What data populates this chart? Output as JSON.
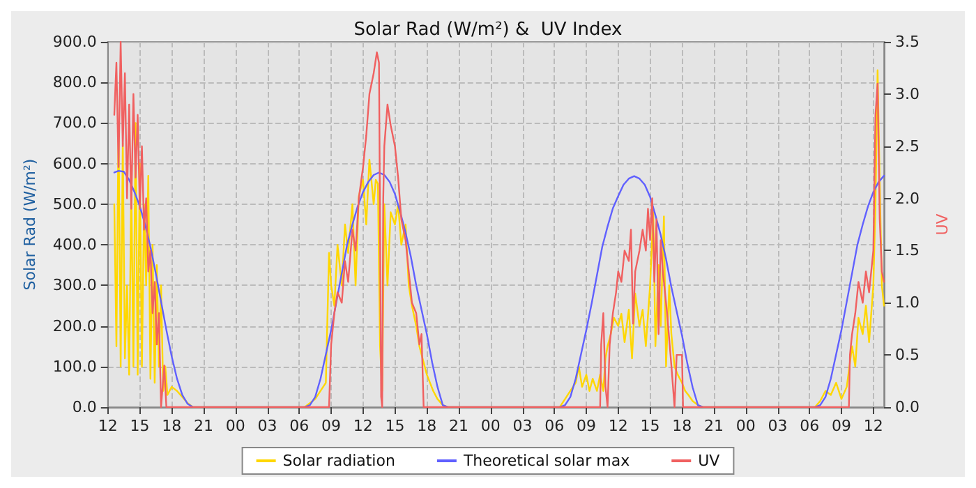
{
  "chart_data": {
    "type": "line",
    "title": "Solar Rad (W/m²) &  UV Index",
    "ylabel": "Solar Rad (W/m²)",
    "y2label": "UV",
    "xlim": [
      12,
      85
    ],
    "xticks": [
      {
        "value": 12,
        "label": "12"
      },
      {
        "value": 15,
        "label": "15"
      },
      {
        "value": 18,
        "label": "18"
      },
      {
        "value": 21,
        "label": "21"
      },
      {
        "value": 24,
        "label": "00"
      },
      {
        "value": 27,
        "label": "03"
      },
      {
        "value": 30,
        "label": "06"
      },
      {
        "value": 33,
        "label": "09"
      },
      {
        "value": 36,
        "label": "12"
      },
      {
        "value": 39,
        "label": "15"
      },
      {
        "value": 42,
        "label": "18"
      },
      {
        "value": 45,
        "label": "21"
      },
      {
        "value": 48,
        "label": "00"
      },
      {
        "value": 51,
        "label": "03"
      },
      {
        "value": 54,
        "label": "06"
      },
      {
        "value": 57,
        "label": "09"
      },
      {
        "value": 60,
        "label": "12"
      },
      {
        "value": 63,
        "label": "15"
      },
      {
        "value": 66,
        "label": "18"
      },
      {
        "value": 69,
        "label": "21"
      },
      {
        "value": 72,
        "label": "00"
      },
      {
        "value": 75,
        "label": "03"
      },
      {
        "value": 78,
        "label": "06"
      },
      {
        "value": 81,
        "label": "09"
      },
      {
        "value": 84,
        "label": "12"
      }
    ],
    "ylim": [
      0,
      900
    ],
    "yticks": [
      {
        "value": 0,
        "label": "0.0"
      },
      {
        "value": 100,
        "label": "100.0"
      },
      {
        "value": 200,
        "label": "200.0"
      },
      {
        "value": 300,
        "label": "300.0"
      },
      {
        "value": 400,
        "label": "400.0"
      },
      {
        "value": 500,
        "label": "500.0"
      },
      {
        "value": 600,
        "label": "600.0"
      },
      {
        "value": 700,
        "label": "700.0"
      },
      {
        "value": 800,
        "label": "800.0"
      },
      {
        "value": 900,
        "label": "900.0"
      }
    ],
    "y2lim": [
      0,
      3.5
    ],
    "y2ticks": [
      {
        "value": 0,
        "label": "0.0"
      },
      0.5,
      {
        "value": 1,
        "label": "1.0"
      },
      1.5,
      {
        "value": 2,
        "label": "2.0"
      },
      2.5,
      {
        "value": 3,
        "label": "3.0"
      },
      3.5
    ],
    "grid": true,
    "legend": "bottom",
    "marker": "none",
    "line_style": "solid",
    "series": [
      {
        "name": "Solar radiation",
        "color": "#ffd700",
        "x": [
          12.6,
          12.8,
          13,
          13.2,
          13.4,
          13.6,
          13.8,
          14,
          14.2,
          14.4,
          14.6,
          14.8,
          15,
          15.2,
          15.4,
          15.6,
          15.8,
          16,
          16.2,
          16.4,
          16.6,
          16.8,
          17,
          17.2,
          17.4,
          17.6,
          18,
          18.5,
          19,
          19.5,
          20,
          30.5,
          31.5,
          32,
          32.5,
          32.8,
          33,
          33.3,
          33.6,
          34,
          34.3,
          34.6,
          35,
          35.3,
          35.6,
          36,
          36.3,
          36.6,
          37,
          37.2,
          37.4,
          37.6,
          37.8,
          38,
          38.3,
          38.6,
          39,
          39.3,
          39.6,
          40,
          40.3,
          40.6,
          41,
          41.3,
          41.6,
          42,
          42.3,
          42.6,
          43,
          43.5,
          44,
          54.5,
          55,
          55.5,
          56,
          56.3,
          56.6,
          57,
          57.3,
          57.6,
          58,
          58.3,
          58.6,
          58.8,
          59,
          59.3,
          59.6,
          60,
          60.3,
          60.6,
          61,
          61.3,
          61.6,
          62,
          62.3,
          62.6,
          63,
          63.3,
          63.5,
          63.8,
          64,
          64.3,
          64.5,
          64.8,
          65,
          65.3,
          65.6,
          66,
          66.3,
          66.6,
          67,
          67.5,
          68,
          78.5,
          79,
          79.5,
          80,
          80.5,
          81,
          81.5,
          82,
          82.3,
          82.6,
          83,
          83.3,
          83.6,
          84,
          84.2,
          84.4,
          84.6,
          84.8,
          85
        ],
        "values": [
          500,
          150,
          700,
          100,
          650,
          120,
          300,
          80,
          550,
          100,
          700,
          80,
          600,
          100,
          500,
          300,
          570,
          70,
          400,
          60,
          350,
          100,
          300,
          40,
          100,
          30,
          50,
          40,
          25,
          10,
          0,
          0,
          20,
          40,
          60,
          380,
          300,
          250,
          400,
          300,
          450,
          380,
          500,
          300,
          520,
          560,
          450,
          610,
          500,
          560,
          550,
          150,
          40,
          500,
          300,
          480,
          450,
          500,
          400,
          450,
          300,
          250,
          200,
          150,
          120,
          80,
          60,
          40,
          20,
          5,
          0,
          0,
          20,
          40,
          60,
          100,
          50,
          80,
          40,
          70,
          40,
          80,
          40,
          120,
          150,
          180,
          220,
          200,
          230,
          160,
          240,
          120,
          280,
          200,
          240,
          150,
          300,
          480,
          150,
          350,
          200,
          470,
          100,
          300,
          180,
          100,
          80,
          60,
          40,
          30,
          15,
          5,
          0,
          0,
          15,
          40,
          30,
          60,
          20,
          50,
          150,
          100,
          220,
          180,
          250,
          160,
          300,
          500,
          830,
          550,
          300,
          250
        ]
      },
      {
        "name": "Theoretical solar max",
        "color": "#6060ff",
        "x": [
          12.6,
          13,
          13.5,
          14,
          14.5,
          15,
          15.5,
          16,
          16.5,
          17,
          17.5,
          18,
          18.5,
          19,
          19.5,
          20,
          30.5,
          31,
          31.5,
          32,
          32.5,
          33,
          33.5,
          34,
          34.5,
          35,
          35.5,
          36,
          36.5,
          37,
          37.5,
          38,
          38.5,
          39,
          39.5,
          40,
          40.5,
          41,
          41.5,
          42,
          42.5,
          43,
          43.5,
          44,
          54.5,
          55,
          55.5,
          56,
          56.5,
          57,
          57.5,
          58,
          58.5,
          59,
          59.5,
          60,
          60.5,
          61,
          61.5,
          62,
          62.5,
          63,
          63.5,
          64,
          64.5,
          65,
          65.5,
          66,
          66.5,
          67,
          67.5,
          68,
          78.5,
          79,
          79.5,
          80,
          80.5,
          81,
          81.5,
          82,
          82.5,
          83,
          83.5,
          84,
          84.5,
          85
        ],
        "values": [
          578,
          582,
          580,
          560,
          530,
          495,
          450,
          395,
          330,
          260,
          190,
          125,
          70,
          30,
          8,
          0,
          0,
          5,
          25,
          70,
          130,
          190,
          260,
          330,
          400,
          450,
          495,
          530,
          555,
          572,
          578,
          572,
          555,
          525,
          480,
          430,
          370,
          300,
          240,
          180,
          110,
          50,
          5,
          0,
          0,
          5,
          25,
          70,
          130,
          190,
          255,
          325,
          395,
          445,
          490,
          520,
          548,
          563,
          569,
          563,
          548,
          518,
          473,
          424,
          365,
          296,
          236,
          177,
          108,
          49,
          5,
          0,
          0,
          5,
          25,
          70,
          130,
          190,
          260,
          330,
          400,
          450,
          495,
          530,
          555,
          570
        ]
      },
      {
        "name": "UV",
        "color": "#f06060",
        "axis": "y2",
        "x": [
          12.6,
          12.8,
          13,
          13.2,
          13.4,
          13.6,
          13.8,
          14,
          14.2,
          14.4,
          14.6,
          14.8,
          15,
          15.2,
          15.4,
          15.6,
          15.8,
          16,
          16.2,
          16.4,
          16.6,
          16.8,
          17,
          17.3,
          17.5,
          18,
          32.8,
          33,
          33.3,
          33.6,
          34,
          34.3,
          34.6,
          35,
          35.3,
          35.6,
          36,
          36.3,
          36.6,
          37,
          37.3,
          37.5,
          37.7,
          37.8,
          37.9,
          38,
          38.3,
          38.6,
          39,
          39.3,
          39.6,
          40,
          40.3,
          40.6,
          41,
          41.3,
          41.5,
          41.7,
          42,
          58.3,
          58.4,
          58.6,
          58.8,
          59,
          59.2,
          59.5,
          59.8,
          60,
          60.3,
          60.6,
          61,
          61.2,
          61.4,
          61.6,
          62,
          62.3,
          62.6,
          62.8,
          63,
          63.2,
          63.4,
          63.6,
          63.8,
          64,
          64.2,
          64.6,
          65,
          65.3,
          65.5,
          66,
          66.1,
          81.7,
          81.8,
          82,
          82.3,
          82.6,
          83,
          83.3,
          83.6,
          84,
          84.2,
          84.4,
          84.6,
          84.8,
          85
        ],
        "values": [
          2.8,
          3.3,
          2.3,
          3.5,
          2.5,
          3.2,
          2,
          2.9,
          1.9,
          3,
          2.2,
          2.8,
          1.9,
          2.5,
          1.7,
          2,
          1.3,
          1.5,
          0.9,
          1.2,
          0.6,
          0.9,
          0,
          0.4,
          0,
          0,
          0,
          0.6,
          0.9,
          1.1,
          1,
          1.4,
          1.2,
          1.7,
          1.5,
          2,
          2.3,
          2.6,
          3,
          3.2,
          3.4,
          3.3,
          0.1,
          0,
          2,
          2.5,
          2.9,
          2.7,
          2.5,
          2.2,
          1.8,
          1.6,
          1.3,
          1,
          0.9,
          0.6,
          0.7,
          0,
          0,
          0,
          0.6,
          0.9,
          0.2,
          0,
          0.6,
          0.9,
          1.1,
          1.3,
          1.2,
          1.5,
          1.4,
          1.7,
          0.8,
          1.3,
          1.5,
          1.7,
          1.5,
          1.9,
          1.6,
          2,
          1.2,
          1.8,
          0.7,
          1.6,
          1.3,
          0.9,
          0.4,
          0,
          0.5,
          0.5,
          0,
          0,
          0.5,
          0.7,
          0.9,
          1.2,
          1,
          1.3,
          1.1,
          1.5,
          2.8,
          3.1,
          1.8,
          1.3,
          1.2
        ]
      }
    ]
  }
}
